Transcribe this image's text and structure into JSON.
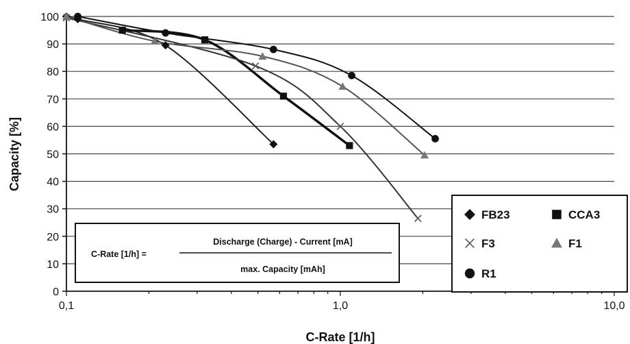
{
  "chart_data": {
    "type": "scatter",
    "xscale": "log",
    "xlim": [
      0.1,
      10.0
    ],
    "ylim": [
      0,
      100
    ],
    "xticks": [
      0.1,
      1.0,
      10.0
    ],
    "xtick_labels": [
      "0,1",
      "1,0",
      "10,0"
    ],
    "yticks": [
      0,
      10,
      20,
      30,
      40,
      50,
      60,
      70,
      80,
      90,
      100
    ],
    "xlabel": "C-Rate [1/h]",
    "ylabel": "Capacity [%]",
    "grid": "horizontal",
    "legend_position": "bottom-right",
    "series": [
      {
        "name": "FB23",
        "marker": "diamond",
        "color": "#111111",
        "x": [
          0.1,
          0.11,
          0.23,
          0.57
        ],
        "y": [
          100,
          99,
          89.5,
          53.5
        ]
      },
      {
        "name": "CCA3",
        "marker": "square",
        "color": "#111111",
        "x": [
          0.16,
          0.32,
          0.62,
          1.08
        ],
        "y": [
          95,
          91.5,
          71,
          53
        ]
      },
      {
        "name": "F3",
        "marker": "x",
        "color": "#555555",
        "x": [
          0.1,
          0.49,
          1.0,
          1.92
        ],
        "y": [
          99.5,
          82,
          60,
          26.5
        ]
      },
      {
        "name": "F1",
        "marker": "triangle",
        "color": "#777777",
        "x": [
          0.1,
          0.21,
          0.52,
          1.02,
          2.03
        ],
        "y": [
          100,
          91,
          85.5,
          74.5,
          49.5
        ]
      },
      {
        "name": "R1",
        "marker": "circle",
        "color": "#111111",
        "x": [
          0.11,
          0.23,
          0.57,
          1.1,
          2.22
        ],
        "y": [
          100,
          94,
          88,
          78.5,
          55.5
        ]
      }
    ],
    "annotations": [
      {
        "text": "C-Rate [1/h] =",
        "numerator": "Discharge (Charge) - Current  [mA]",
        "denominator": "max. Capacity  [mAh]"
      }
    ]
  }
}
